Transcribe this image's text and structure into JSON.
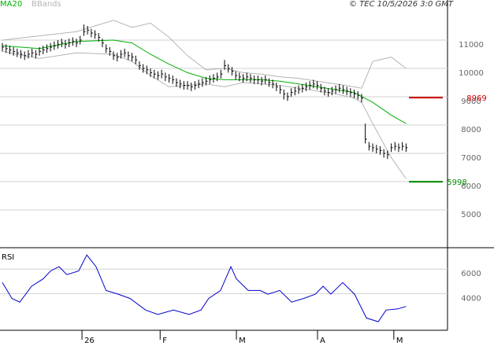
{
  "chart_data": [
    {
      "type": "ohlc",
      "annotation": "© TEC 10/5/2026 3:0 GMT",
      "bar_color": "#000000",
      "grid": true,
      "xlim": [
        -0.64,
        120.2
      ],
      "ylim": [
        3667,
        12417
      ],
      "yticks": [
        5000,
        6000,
        7000,
        8000,
        9000,
        10000,
        11000
      ],
      "close": [
        10750,
        10700,
        10650,
        10600,
        10550,
        10500,
        10450,
        10500,
        10550,
        10500,
        10600,
        10650,
        10700,
        10750,
        10800,
        10850,
        10900,
        10850,
        10900,
        10950,
        10900,
        11000,
        11300,
        11350,
        11250,
        11200,
        11100,
        10900,
        10700,
        10600,
        10450,
        10400,
        10500,
        10550,
        10450,
        10400,
        10300,
        10100,
        10000,
        9950,
        9850,
        9800,
        9750,
        9800,
        9700,
        9650,
        9600,
        9500,
        9450,
        9400,
        9400,
        9350,
        9400,
        9450,
        9500,
        9550,
        9600,
        9650,
        9700,
        9800,
        10100,
        10000,
        9900,
        9750,
        9700,
        9650,
        9700,
        9650,
        9600,
        9600,
        9550,
        9600,
        9500,
        9450,
        9350,
        9250,
        9100,
        9000,
        9150,
        9200,
        9250,
        9300,
        9350,
        9400,
        9450,
        9400,
        9300,
        9200,
        9150,
        9200,
        9250,
        9300,
        9250,
        9200,
        9150,
        9100,
        9050,
        8950,
        7500,
        7250,
        7200,
        7150,
        7100,
        7000,
        6950,
        7200,
        7250,
        7200,
        7250,
        7200
      ],
      "high": [
        10900,
        10850,
        10800,
        10750,
        10700,
        10650,
        10600,
        10650,
        10700,
        10650,
        10750,
        10800,
        10850,
        10900,
        10950,
        11000,
        11050,
        11000,
        11050,
        11100,
        11050,
        11150,
        11550,
        11500,
        11400,
        11350,
        11250,
        11050,
        10850,
        10750,
        10600,
        10550,
        10650,
        10700,
        10600,
        10550,
        10450,
        10250,
        10150,
        10100,
        10000,
        9950,
        9900,
        9950,
        9850,
        9800,
        9750,
        9650,
        9600,
        9550,
        9550,
        9500,
        9550,
        9600,
        9650,
        9700,
        9750,
        9800,
        9850,
        9950,
        10300,
        10150,
        10050,
        9900,
        9850,
        9800,
        9850,
        9800,
        9750,
        9750,
        9700,
        9750,
        9650,
        9600,
        9500,
        9400,
        9250,
        9150,
        9300,
        9350,
        9400,
        9450,
        9500,
        9550,
        9600,
        9550,
        9450,
        9350,
        9300,
        9350,
        9400,
        9450,
        9400,
        9350,
        9300,
        9250,
        9200,
        9100,
        8050,
        7400,
        7350,
        7300,
        7250,
        7150,
        7100,
        7350,
        7400,
        7350,
        7400,
        7350
      ],
      "low": [
        10600,
        10550,
        10500,
        10450,
        10400,
        10350,
        10300,
        10350,
        10400,
        10350,
        10450,
        10500,
        10550,
        10600,
        10650,
        10700,
        10750,
        10700,
        10750,
        10800,
        10750,
        10850,
        11150,
        11200,
        11100,
        11050,
        10950,
        10750,
        10550,
        10450,
        10300,
        10250,
        10350,
        10400,
        10300,
        10250,
        10150,
        9950,
        9850,
        9800,
        9700,
        9650,
        9600,
        9650,
        9550,
        9500,
        9450,
        9350,
        9300,
        9250,
        9250,
        9200,
        9250,
        9300,
        9350,
        9400,
        9450,
        9500,
        9550,
        9650,
        9950,
        9850,
        9750,
        9600,
        9550,
        9500,
        9550,
        9500,
        9450,
        9450,
        9400,
        9450,
        9350,
        9300,
        9200,
        9100,
        8900,
        8850,
        9000,
        9050,
        9100,
        9150,
        9200,
        9250,
        9300,
        9250,
        9150,
        9050,
        9000,
        9050,
        9100,
        9150,
        9100,
        9050,
        9000,
        8950,
        8900,
        8800,
        7350,
        7100,
        7050,
        7000,
        6950,
        6850,
        6800,
        7050,
        7100,
        7050,
        7100,
        7050
      ],
      "series": [
        {
          "name": "MA20",
          "color": "#00b000",
          "x": [
            0,
            10,
            20,
            30,
            35,
            40,
            45,
            50,
            55,
            60,
            65,
            70,
            75,
            80,
            85,
            90,
            95,
            100,
            105,
            109
          ],
          "values": [
            10800,
            10700,
            10950,
            11000,
            10900,
            10500,
            10150,
            9850,
            9650,
            9600,
            9600,
            9600,
            9550,
            9450,
            9350,
            9250,
            9150,
            8800,
            8350,
            8050
          ]
        },
        {
          "name": "BBands",
          "color": "#b4b4b4",
          "x": [
            0,
            10,
            20,
            30,
            35,
            40,
            45,
            50,
            55,
            60,
            65,
            70,
            75,
            80,
            85,
            90,
            95,
            97,
            100,
            105,
            109
          ],
          "values": [
            11000,
            11150,
            11300,
            11700,
            11450,
            11600,
            11100,
            10450,
            9950,
            10000,
            9850,
            9800,
            9700,
            9650,
            9550,
            9450,
            9350,
            9300,
            10250,
            10400,
            10000
          ],
          "lower": [
            10600,
            10350,
            10550,
            10500,
            10250,
            9750,
            9350,
            9400,
            9450,
            9350,
            9500,
            9450,
            9400,
            9300,
            9200,
            9100,
            8950,
            8800,
            8050,
            6850,
            6100
          ]
        }
      ],
      "levels": [
        {
          "value": 8969,
          "color": "#cc0000"
        },
        {
          "value": 5998,
          "color": "#008800"
        }
      ]
    },
    {
      "type": "line",
      "title": "RSI",
      "color": "#0000cc",
      "grid": true,
      "xlim": [
        -0.64,
        120.2
      ],
      "ylim": [
        1000,
        7750
      ],
      "yticks": [
        4000,
        6000
      ],
      "xticks": [
        {
          "value": 21.5,
          "label": "26"
        },
        {
          "value": 42.6,
          "label": "F"
        },
        {
          "value": 63.2,
          "label": "M"
        },
        {
          "value": 85.1,
          "label": "A"
        },
        {
          "value": 105.7,
          "label": "M"
        }
      ],
      "x": [
        0,
        2.6,
        4.7,
        7.9,
        11,
        13,
        15.3,
        17.4,
        20.6,
        22.8,
        25.3,
        28,
        31.3,
        34.5,
        38.7,
        42,
        46.2,
        50.4,
        53.6,
        55.7,
        58.9,
        61.7,
        63.2,
        66.4,
        69.6,
        71.7,
        74.9,
        78.1,
        81.3,
        84.5,
        86.6,
        88.7,
        91.9,
        95.1,
        98.3,
        101.5,
        103.6,
        106.8,
        109
      ],
      "values": [
        4900,
        3600,
        3300,
        4600,
        5200,
        5850,
        6200,
        5550,
        5850,
        7150,
        6200,
        4250,
        3950,
        3600,
        2650,
        2300,
        2650,
        2300,
        2650,
        3600,
        4250,
        6200,
        5200,
        4250,
        4250,
        3950,
        4250,
        3300,
        3600,
        3950,
        4600,
        3950,
        4900,
        3950,
        2000,
        1700,
        2650,
        2750,
        2950
      ]
    }
  ]
}
